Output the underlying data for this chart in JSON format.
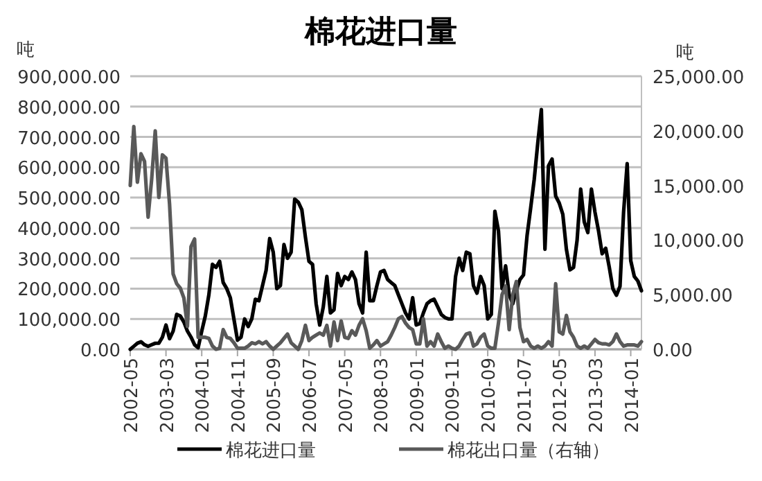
{
  "chart_data": {
    "type": "line",
    "title": "棉花进口量",
    "ylabel": "吨",
    "y2label": "吨",
    "x": [
      "2002-05",
      "2002-06",
      "2002-07",
      "2002-08",
      "2002-09",
      "2002-10",
      "2002-11",
      "2002-12",
      "2003-01",
      "2003-02",
      "2003-03",
      "2003-04",
      "2003-05",
      "2003-06",
      "2003-07",
      "2003-08",
      "2003-09",
      "2003-10",
      "2003-11",
      "2003-12",
      "2004-01",
      "2004-02",
      "2004-03",
      "2004-04",
      "2004-05",
      "2004-06",
      "2004-07",
      "2004-08",
      "2004-09",
      "2004-10",
      "2004-11",
      "2004-12",
      "2005-01",
      "2005-02",
      "2005-03",
      "2005-04",
      "2005-05",
      "2005-06",
      "2005-07",
      "2005-08",
      "2005-09",
      "2005-10",
      "2005-11",
      "2005-12",
      "2006-01",
      "2006-02",
      "2006-03",
      "2006-04",
      "2006-05",
      "2006-06",
      "2006-07",
      "2006-08",
      "2006-09",
      "2006-10",
      "2006-11",
      "2006-12",
      "2007-01",
      "2007-02",
      "2007-03",
      "2007-04",
      "2007-05",
      "2007-06",
      "2007-07",
      "2007-08",
      "2007-09",
      "2007-10",
      "2007-11",
      "2007-12",
      "2008-01",
      "2008-02",
      "2008-03",
      "2008-04",
      "2008-05",
      "2008-06",
      "2008-07",
      "2008-08",
      "2008-09",
      "2008-10",
      "2008-11",
      "2008-12",
      "2009-01",
      "2009-02",
      "2009-03",
      "2009-04",
      "2009-05",
      "2009-06",
      "2009-07",
      "2009-08",
      "2009-09",
      "2009-10",
      "2009-11",
      "2009-12",
      "2010-01",
      "2010-02",
      "2010-03",
      "2010-04",
      "2010-05",
      "2010-06",
      "2010-07",
      "2010-08",
      "2010-09",
      "2010-10",
      "2010-11",
      "2010-12",
      "2011-01",
      "2011-02",
      "2011-03",
      "2011-04",
      "2011-05",
      "2011-06",
      "2011-07",
      "2011-08",
      "2011-09",
      "2011-10",
      "2011-11",
      "2011-12",
      "2012-01",
      "2012-02",
      "2012-03",
      "2012-04",
      "2012-05",
      "2012-06",
      "2012-07",
      "2012-08",
      "2012-09",
      "2012-10",
      "2012-11",
      "2012-12",
      "2013-01",
      "2013-02",
      "2013-03",
      "2013-04",
      "2013-05",
      "2013-06",
      "2013-07",
      "2013-08",
      "2013-09",
      "2013-10",
      "2013-11",
      "2013-12",
      "2014-01",
      "2014-02",
      "2014-03",
      "2014-04"
    ],
    "series": [
      {
        "name": "棉花进口量",
        "color": "#000000",
        "values": [
          0,
          10000,
          20000,
          25000,
          15000,
          10000,
          15000,
          20000,
          20000,
          40000,
          80000,
          35000,
          60000,
          115000,
          110000,
          90000,
          60000,
          40000,
          15000,
          5000,
          60000,
          110000,
          180000,
          280000,
          270000,
          290000,
          220000,
          200000,
          170000,
          100000,
          30000,
          40000,
          100000,
          75000,
          100000,
          165000,
          160000,
          210000,
          260000,
          365000,
          320000,
          200000,
          210000,
          345000,
          300000,
          320000,
          495000,
          485000,
          460000,
          370000,
          290000,
          280000,
          150000,
          80000,
          140000,
          240000,
          120000,
          130000,
          250000,
          210000,
          240000,
          230000,
          255000,
          230000,
          150000,
          120000,
          320000,
          160000,
          160000,
          210000,
          255000,
          260000,
          230000,
          220000,
          210000,
          180000,
          150000,
          120000,
          100000,
          170000,
          80000,
          85000,
          120000,
          150000,
          160000,
          165000,
          140000,
          115000,
          105000,
          100000,
          100000,
          240000,
          300000,
          260000,
          320000,
          315000,
          210000,
          185000,
          240000,
          210000,
          100000,
          115000,
          455000,
          390000,
          200000,
          275000,
          180000,
          150000,
          195000,
          230000,
          245000,
          375000,
          465000,
          560000,
          680000,
          790000,
          330000,
          605000,
          627000,
          505000,
          482000,
          445000,
          330000,
          262000,
          270000,
          360000,
          528000,
          420000,
          385000,
          528000,
          452000,
          390000,
          315000,
          333000,
          270000,
          200000,
          178000,
          208000,
          452000,
          612000,
          292000,
          240000,
          225000,
          193000
        ]
      },
      {
        "name": "棉花出口量（右轴）",
        "color": "#595959",
        "axis": "y2",
        "values": [
          15000,
          20400,
          15300,
          17900,
          17200,
          12100,
          15600,
          20000,
          13900,
          17800,
          17500,
          13300,
          6900,
          6000,
          5600,
          4700,
          2100,
          9400,
          10100,
          1100,
          1100,
          1100,
          1000,
          300,
          0,
          100,
          1800,
          1100,
          1000,
          600,
          100,
          100,
          100,
          300,
          600,
          500,
          700,
          500,
          700,
          300,
          0,
          300,
          600,
          1000,
          1400,
          600,
          300,
          0,
          800,
          2200,
          800,
          1100,
          1300,
          1500,
          1300,
          2200,
          300,
          2500,
          800,
          2600,
          1100,
          1000,
          1700,
          1300,
          2200,
          2800,
          1700,
          100,
          400,
          800,
          300,
          500,
          700,
          1300,
          2000,
          2800,
          3000,
          2400,
          2000,
          1800,
          500,
          500,
          2800,
          300,
          700,
          300,
          1400,
          700,
          100,
          300,
          100,
          0,
          300,
          900,
          1400,
          1500,
          300,
          500,
          1100,
          1400,
          300,
          100,
          100,
          2400,
          5000,
          5800,
          1800,
          5000,
          6200,
          2000,
          700,
          900,
          300,
          100,
          300,
          100,
          300,
          700,
          300,
          6000,
          1600,
          1400,
          3100,
          1600,
          1100,
          300,
          100,
          300,
          100,
          500,
          900,
          600,
          500,
          500,
          400,
          700,
          1400,
          700,
          300,
          400,
          400,
          400,
          300,
          700
        ]
      }
    ],
    "xlim": [
      "2002-05",
      "2014-04"
    ],
    "xticks": [
      "2002-05",
      "2003-03",
      "2004-01",
      "2004-11",
      "2005-09",
      "2006-07",
      "2007-05",
      "2008-03",
      "2009-01",
      "2009-11",
      "2010-09",
      "2011-07",
      "2012-05",
      "2013-03",
      "2014-01"
    ],
    "ylim": [
      0,
      900000
    ],
    "yticks": [
      {
        "value": 0,
        "label": "0.00"
      },
      {
        "value": 100000,
        "label": "100,000.00"
      },
      {
        "value": 200000,
        "label": "200,000.00"
      },
      {
        "value": 300000,
        "label": "300,000.00"
      },
      {
        "value": 400000,
        "label": "400,000.00"
      },
      {
        "value": 500000,
        "label": "500,000.00"
      },
      {
        "value": 600000,
        "label": "600,000.00"
      },
      {
        "value": 700000,
        "label": "700,000.00"
      },
      {
        "value": 800000,
        "label": "800,000.00"
      },
      {
        "value": 900000,
        "label": "900,000.00"
      }
    ],
    "y2lim": [
      0,
      25000
    ],
    "y2ticks": [
      {
        "value": 0,
        "label": "0.00"
      },
      {
        "value": 5000,
        "label": "5,000.00"
      },
      {
        "value": 10000,
        "label": "10,000.00"
      },
      {
        "value": 15000,
        "label": "15,000.00"
      },
      {
        "value": 20000,
        "label": "20,000.00"
      },
      {
        "value": 25000,
        "label": "25,000.00"
      }
    ],
    "grid": "y",
    "legend": "bottom",
    "marker": "none",
    "line_style": "solid"
  }
}
